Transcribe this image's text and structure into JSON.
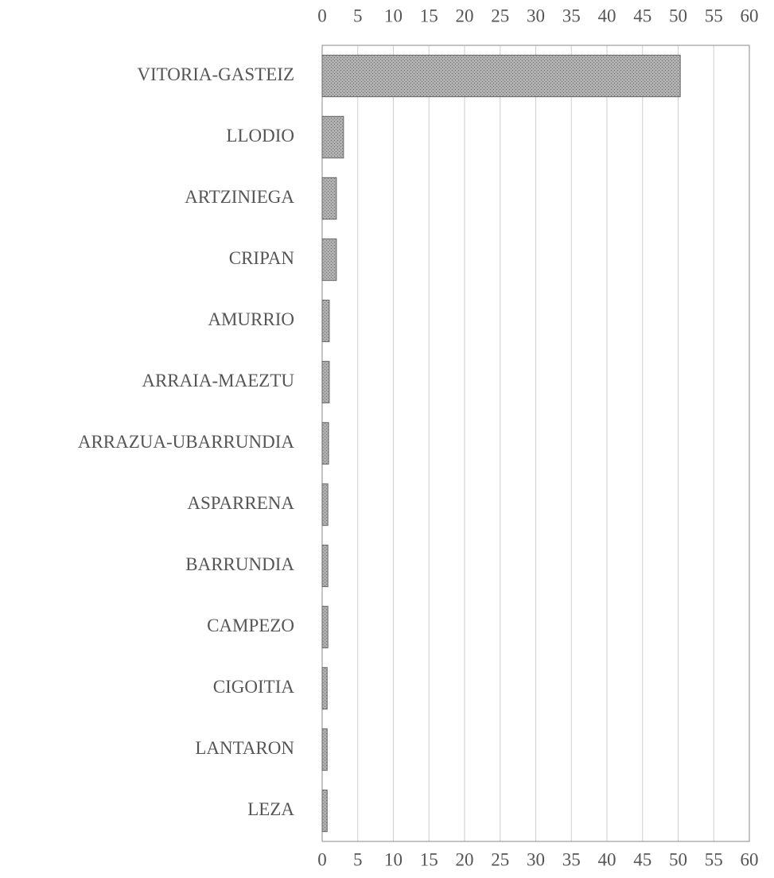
{
  "chart_data": {
    "type": "barh",
    "categories": [
      "VITORIA-GASTEIZ",
      "LLODIO",
      "ARTZINIEGA",
      "CRIPAN",
      "AMURRIO",
      "ARRAIA-MAEZTU",
      "ARRAZUA-UBARRUNDIA",
      "ASPARRENA",
      "BARRUNDIA",
      "CAMPEZO",
      "CIGOITIA",
      "LANTARON",
      "LEZA"
    ],
    "values": [
      50.3,
      3,
      2,
      2,
      1,
      1,
      0.9,
      0.8,
      0.8,
      0.8,
      0.7,
      0.7,
      0.7
    ],
    "color": "#a3a3a3",
    "xlim": [
      0,
      60
    ],
    "xticks": [
      0,
      5,
      10,
      15,
      20,
      25,
      30,
      35,
      40,
      45,
      50,
      55,
      60
    ],
    "grid": true
  }
}
